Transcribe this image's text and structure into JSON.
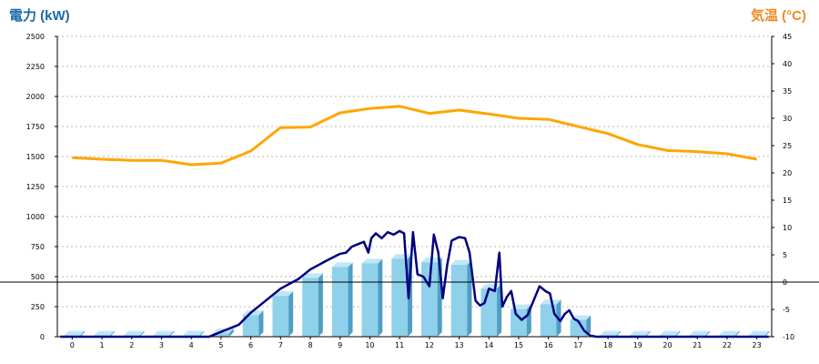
{
  "chart_data": {
    "type": "bar",
    "left_axis_title": "電力 (kW)",
    "right_axis_title": "気温 (°C)",
    "left_axis_color": "#1a6aa8",
    "right_axis_color": "#f08a24",
    "categories": [
      "0",
      "1",
      "2",
      "3",
      "4",
      "5",
      "6",
      "7",
      "8",
      "9",
      "10",
      "11",
      "12",
      "13",
      "14",
      "15",
      "16",
      "17",
      "18",
      "19",
      "20",
      "21",
      "22",
      "23"
    ],
    "y_left": {
      "ticks": [
        "0",
        "250",
        "500",
        "750",
        "1000",
        "1250",
        "1500",
        "1750",
        "2000",
        "2250",
        "2500"
      ],
      "min": 0,
      "max": 2500
    },
    "y_right": {
      "ticks": [
        "-10",
        "-5",
        "0",
        "5",
        "10",
        "15",
        "20",
        "25",
        "30",
        "35",
        "40",
        "45"
      ],
      "min": -10,
      "max": 45
    },
    "reference_line_right": 0,
    "grid": "horizontal dotted",
    "bars": {
      "color": "#8fd0ea",
      "values": [
        10,
        10,
        10,
        10,
        10,
        30,
        180,
        340,
        490,
        580,
        610,
        650,
        620,
        600,
        400,
        230,
        270,
        140,
        10,
        10,
        10,
        10,
        10,
        10
      ]
    },
    "power_line": {
      "color": "#000080",
      "points": [
        [
          -0.4,
          0
        ],
        [
          4.6,
          0
        ],
        [
          5,
          40
        ],
        [
          5.6,
          100
        ],
        [
          6,
          200
        ],
        [
          6.4,
          280
        ],
        [
          7,
          400
        ],
        [
          7.6,
          480
        ],
        [
          8,
          560
        ],
        [
          8.6,
          640
        ],
        [
          9,
          690
        ],
        [
          9.2,
          700
        ],
        [
          9.4,
          750
        ],
        [
          9.8,
          790
        ],
        [
          9.95,
          700
        ],
        [
          10.05,
          820
        ],
        [
          10.2,
          860
        ],
        [
          10.4,
          820
        ],
        [
          10.6,
          870
        ],
        [
          10.8,
          850
        ],
        [
          11,
          880
        ],
        [
          11.15,
          860
        ],
        [
          11.3,
          320
        ],
        [
          11.45,
          870
        ],
        [
          11.6,
          520
        ],
        [
          11.8,
          500
        ],
        [
          12.0,
          420
        ],
        [
          12.15,
          850
        ],
        [
          12.3,
          700
        ],
        [
          12.45,
          320
        ],
        [
          12.6,
          600
        ],
        [
          12.75,
          800
        ],
        [
          13,
          830
        ],
        [
          13.2,
          820
        ],
        [
          13.35,
          700
        ],
        [
          13.55,
          300
        ],
        [
          13.7,
          260
        ],
        [
          13.85,
          280
        ],
        [
          14.0,
          400
        ],
        [
          14.2,
          380
        ],
        [
          14.35,
          700
        ],
        [
          14.45,
          250
        ],
        [
          14.6,
          330
        ],
        [
          14.75,
          380
        ],
        [
          14.9,
          190
        ],
        [
          15.1,
          140
        ],
        [
          15.3,
          180
        ],
        [
          15.5,
          300
        ],
        [
          15.7,
          420
        ],
        [
          15.9,
          380
        ],
        [
          16.05,
          360
        ],
        [
          16.2,
          190
        ],
        [
          16.4,
          130
        ],
        [
          16.55,
          190
        ],
        [
          16.7,
          220
        ],
        [
          16.85,
          150
        ],
        [
          17.0,
          130
        ],
        [
          17.2,
          50
        ],
        [
          17.4,
          10
        ],
        [
          17.6,
          0
        ],
        [
          23.4,
          0
        ]
      ]
    },
    "temperature_line": {
      "color": "#ffa500",
      "values": [
        22.8,
        22.5,
        22.3,
        22.3,
        21.5,
        21.8,
        24,
        28.3,
        28.4,
        31,
        31.8,
        32.2,
        30.9,
        31.5,
        30.8,
        30,
        29.8,
        28.5,
        27.2,
        25.2,
        24.1,
        23.9,
        23.5,
        22.5
      ]
    }
  }
}
